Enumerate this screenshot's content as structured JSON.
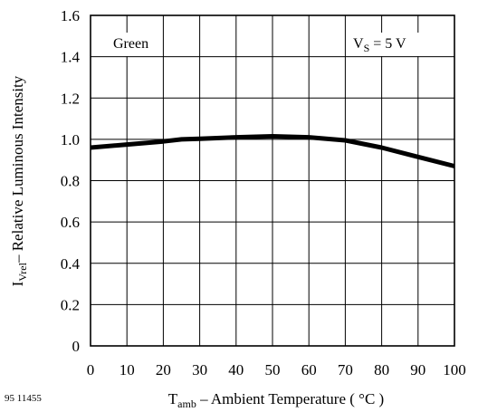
{
  "chart_data": {
    "type": "line",
    "title": "",
    "xlabel_main": "T",
    "xlabel_sub": "amb",
    "xlabel_rest": " – Ambient Temperature ( °C )",
    "ylabel_main": "I",
    "ylabel_sub": "Vrel",
    "ylabel_rest": "– Relative Luminous Intensity",
    "xlim": [
      0,
      100
    ],
    "ylim": [
      0,
      1.6
    ],
    "xticks": [
      "0",
      "10",
      "20",
      "30",
      "40",
      "50",
      "60",
      "70",
      "80",
      "90",
      "100"
    ],
    "yticks": [
      "0",
      "0.2",
      "0.4",
      "0.6",
      "0.8",
      "1.0",
      "1.2",
      "1.4",
      "1.6"
    ],
    "grid": true,
    "series": [
      {
        "x": [
          0,
          10,
          20,
          25,
          30,
          40,
          50,
          60,
          70,
          80,
          90,
          100
        ],
        "y": [
          0.96,
          0.975,
          0.99,
          1.0,
          1.003,
          1.01,
          1.015,
          1.01,
          0.995,
          0.96,
          0.915,
          0.87
        ]
      }
    ],
    "annotations": {
      "color_label": "Green",
      "condition_main": "V",
      "condition_sub": "S",
      "condition_rest": " = 5 V"
    },
    "figure_id": "95 11455"
  }
}
